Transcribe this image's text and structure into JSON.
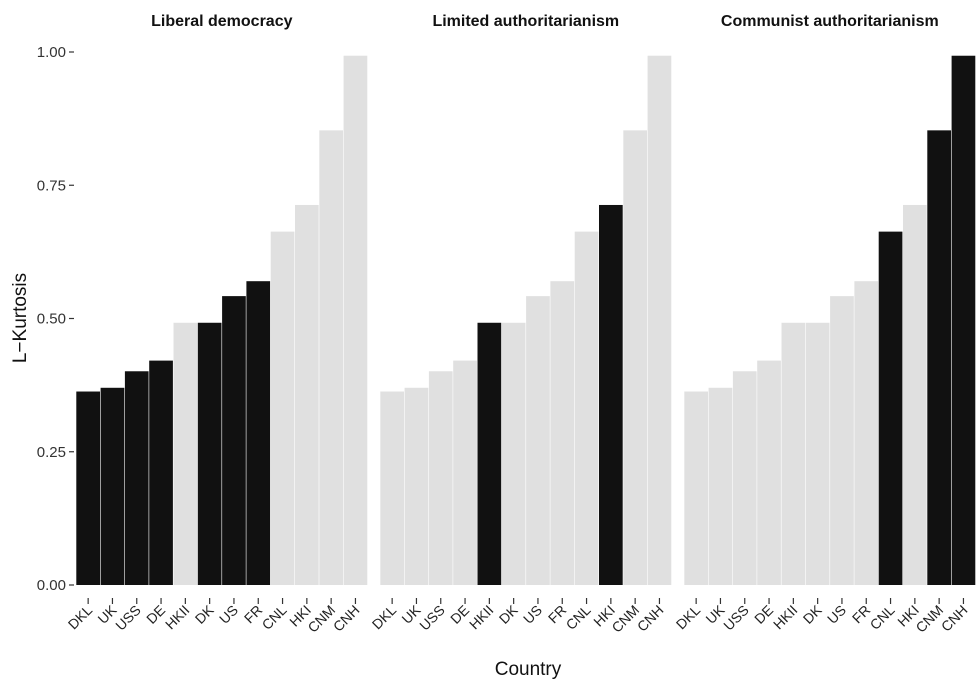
{
  "chart_data": {
    "type": "bar",
    "xlabel": "Country",
    "ylabel": "L−Kurtosis",
    "ylim": [
      0,
      1.0
    ],
    "yticks": [
      "0.00",
      "0.25",
      "0.50",
      "0.75",
      "1.00"
    ],
    "ytick_values": [
      0,
      0.25,
      0.5,
      0.75,
      1.0
    ],
    "grid": false,
    "colors": {
      "highlight": "#111111",
      "base": "#e0e0e0"
    },
    "panels": [
      {
        "title": "Liberal democracy",
        "categories": [
          "DKL",
          "UK",
          "USS",
          "DE",
          "HKII",
          "DK",
          "US",
          "FR",
          "CNL",
          "HKI",
          "CNM",
          "CNH"
        ],
        "values": [
          0.363,
          0.37,
          0.401,
          0.421,
          0.492,
          0.492,
          0.542,
          0.57,
          0.663,
          0.713,
          0.853,
          0.993
        ],
        "highlighted": [
          true,
          true,
          true,
          true,
          false,
          true,
          true,
          true,
          false,
          false,
          false,
          false
        ]
      },
      {
        "title": "Limited authoritarianism",
        "categories": [
          "DKL",
          "UK",
          "USS",
          "DE",
          "HKII",
          "DK",
          "US",
          "FR",
          "CNL",
          "HKI",
          "CNM",
          "CNH"
        ],
        "values": [
          0.363,
          0.37,
          0.401,
          0.421,
          0.492,
          0.492,
          0.542,
          0.57,
          0.663,
          0.713,
          0.853,
          0.993
        ],
        "highlighted": [
          false,
          false,
          false,
          false,
          true,
          false,
          false,
          false,
          false,
          true,
          false,
          false
        ]
      },
      {
        "title": "Communist authoritarianism",
        "categories": [
          "DKL",
          "UK",
          "USS",
          "DE",
          "HKII",
          "DK",
          "US",
          "FR",
          "CNL",
          "HKI",
          "CNM",
          "CNH"
        ],
        "values": [
          0.363,
          0.37,
          0.401,
          0.421,
          0.492,
          0.492,
          0.542,
          0.57,
          0.663,
          0.713,
          0.853,
          0.993
        ],
        "highlighted": [
          false,
          false,
          false,
          false,
          false,
          false,
          false,
          false,
          true,
          false,
          true,
          true
        ]
      }
    ]
  }
}
